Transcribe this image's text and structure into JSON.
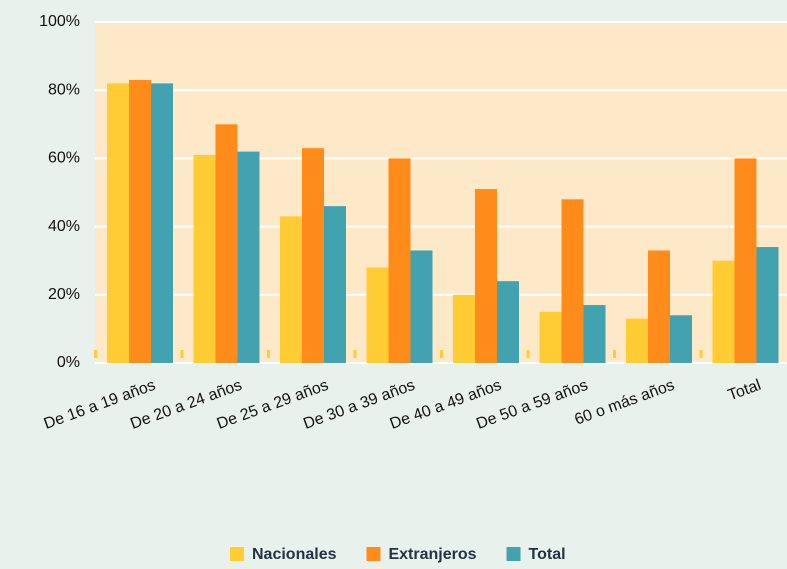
{
  "chart_data": {
    "type": "bar",
    "categories": [
      "De 16 a 19 años",
      "De 20 a 24 años",
      "De 25 a 29 años",
      "De 30 a 39 años",
      "De 40 a 49 años",
      "De 50 a 59 años",
      "60 o más años",
      "Total"
    ],
    "series": [
      {
        "name": "Nacionales",
        "color": "#ffcc33",
        "values": [
          82,
          61,
          43,
          28,
          20,
          15,
          13,
          30
        ]
      },
      {
        "name": "Extranjeros",
        "color": "#ff8c1a",
        "values": [
          83,
          70,
          63,
          60,
          51,
          48,
          33,
          60
        ]
      },
      {
        "name": "Total",
        "color": "#43a2b0",
        "values": [
          82,
          62,
          46,
          33,
          24,
          17,
          14,
          34
        ]
      }
    ],
    "ylim": [
      0,
      100
    ],
    "yticks": [
      {
        "value": 0,
        "label": "0%"
      },
      {
        "value": 20,
        "label": "20%"
      },
      {
        "value": 40,
        "label": "40%"
      },
      {
        "value": 60,
        "label": "60%"
      },
      {
        "value": 80,
        "label": "80%"
      },
      {
        "value": 100,
        "label": "100%"
      }
    ],
    "grid": true
  }
}
